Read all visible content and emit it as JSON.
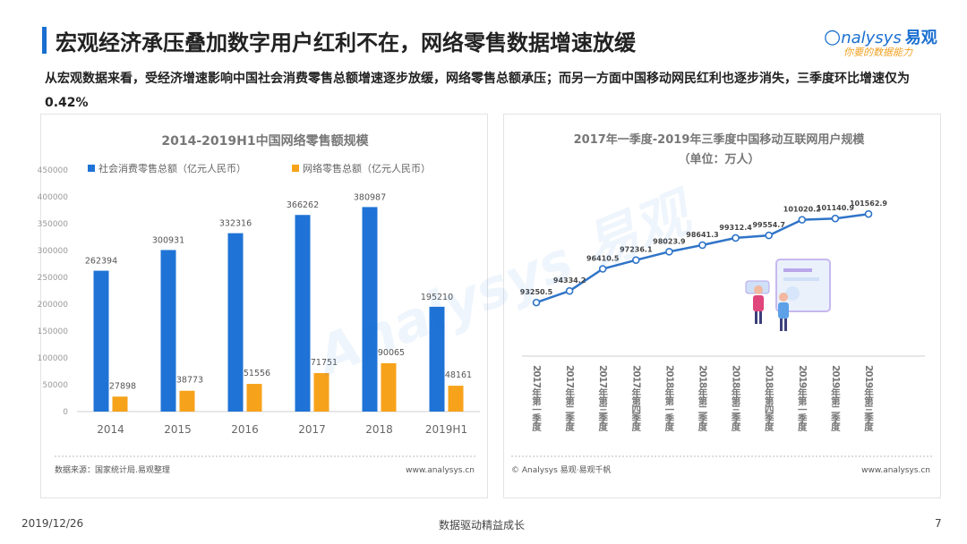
{
  "header": {
    "title": "宏观经济承压叠加数字用户红利不在，网络零售数据增速放缓",
    "subtitle": "从宏观数据来看，受经济增速影响中国社会消费零售总额增速逐步放缓，网络零售总额承压；而另一方面中国移动网民红利也逐步消失，三季度环比增速仅为0.42%",
    "logo_text": "nalysys",
    "logo_brand": "易观",
    "logo_slogan": "你要的数据能力",
    "accent_color": "#1a6fd0"
  },
  "footer": {
    "date": "2019/12/26",
    "center": "数据驱动精益成长",
    "page": "7"
  },
  "left_panel": {
    "source": "数据来源：国家统计局.易观整理",
    "site": "www.analysys.cn"
  },
  "right_panel": {
    "source": "© Analysys 易观·易观千帆",
    "site": "www.analysys.cn"
  },
  "chart_data": [
    {
      "type": "bar",
      "title": "2014-2019H1中国网络零售额规模",
      "categories": [
        "2014",
        "2015",
        "2016",
        "2017",
        "2018",
        "2019H1"
      ],
      "series": [
        {
          "name": "社会消费零售总额（亿元人民币）",
          "color": "#1f73d6",
          "values": [
            262394,
            300931,
            332316,
            366262,
            380987,
            195210
          ]
        },
        {
          "name": "网络零售总额（亿元人民币）",
          "color": "#f7a21b",
          "values": [
            27898,
            38773,
            51556,
            71751,
            90065,
            48161
          ]
        }
      ],
      "labels": [
        [
          "262394",
          "300931",
          "332316",
          "366262",
          "380987",
          "195210"
        ],
        [
          "27898",
          "38773",
          "51556",
          "71751",
          "90065",
          "48161"
        ]
      ],
      "ylim": [
        0,
        450000
      ],
      "yticks": [
        "0",
        "50000",
        "100000",
        "150000",
        "200000",
        "250000",
        "300000",
        "350000",
        "400000",
        "450000"
      ],
      "legend": "top",
      "grid": false
    },
    {
      "type": "line",
      "title": "2017年一季度-2019年三季度中国移动互联网用户规模",
      "subtitle": "（单位：万人）",
      "categories": [
        "2017年第一季度",
        "2017年第二季度",
        "2017年第三季度",
        "2017年第四季度",
        "2018年第一季度",
        "2018年第二季度",
        "2018年第三季度",
        "2018年第四季度",
        "2019年第一季度",
        "2019年第二季度",
        "2019年第三季度"
      ],
      "values": [
        93250.5,
        94334.2,
        96410.5,
        97236.1,
        98023.9,
        98641.3,
        99312.4,
        99554.7,
        101020.2,
        101140.9,
        101562.9
      ],
      "labels": [
        "93250.5",
        "94334.2",
        "96410.5",
        "97236.1",
        "98023.9",
        "98641.3",
        "99312.4",
        "99554.7",
        "101020.2",
        "101140.9",
        "101562.9"
      ],
      "color": "#2f74c8",
      "grid": false
    }
  ]
}
